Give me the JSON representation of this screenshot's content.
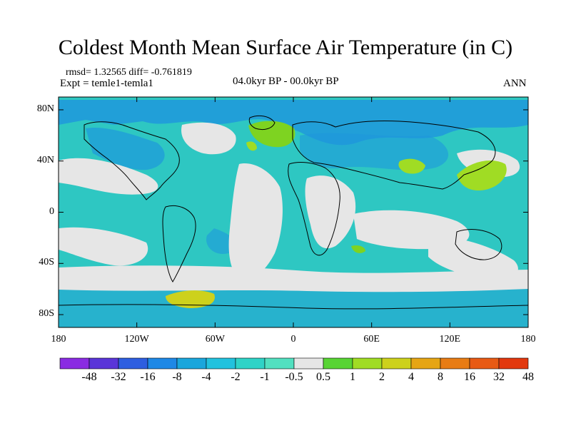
{
  "title": "Coldest Month Mean Surface Air Temperature (in C)",
  "stats": {
    "rmsd": "rmsd= 1.32565 diff= -0.761819",
    "expt": "Expt = temle1-temla1"
  },
  "period": "04.0kyr BP - 00.0kyr BP",
  "season": "ANN",
  "map": {
    "projection": "equirectangular",
    "lon_range": [
      -180,
      180
    ],
    "lat_range": [
      -90,
      90
    ],
    "x_ticks": [
      {
        "lon": -180,
        "label": "180"
      },
      {
        "lon": -120,
        "label": "120W"
      },
      {
        "lon": -60,
        "label": "60W"
      },
      {
        "lon": 0,
        "label": "0"
      },
      {
        "lon": 60,
        "label": "60E"
      },
      {
        "lon": 120,
        "label": "120E"
      },
      {
        "lon": 180,
        "label": "180"
      }
    ],
    "y_ticks": [
      {
        "lat": 80,
        "label": "80N"
      },
      {
        "lat": 40,
        "label": "40N"
      },
      {
        "lat": 0,
        "label": "0"
      },
      {
        "lat": -40,
        "label": "40S"
      },
      {
        "lat": -80,
        "label": "80S"
      }
    ],
    "colors": {
      "cool_main": "#2ec7c2",
      "cool_deep": "#1e98dc",
      "neutral": "#e6e6e6",
      "warm": "#7ed321"
    }
  },
  "colorbar": {
    "colors": [
      "#8a2be2",
      "#5a35d8",
      "#2e5ee0",
      "#1e88e6",
      "#1aa6dc",
      "#22c2de",
      "#2fd3c7",
      "#52e0c0",
      "#e6e6e6",
      "#58d434",
      "#a0dc24",
      "#cdd11c",
      "#e6a514",
      "#e87c14",
      "#e85a14",
      "#e2380e"
    ],
    "labels": [
      "-48",
      "-32",
      "-16",
      "-8",
      "-4",
      "-2",
      "-1",
      "-0.5",
      "0.5",
      "1",
      "2",
      "4",
      "8",
      "16",
      "32",
      "48"
    ]
  }
}
